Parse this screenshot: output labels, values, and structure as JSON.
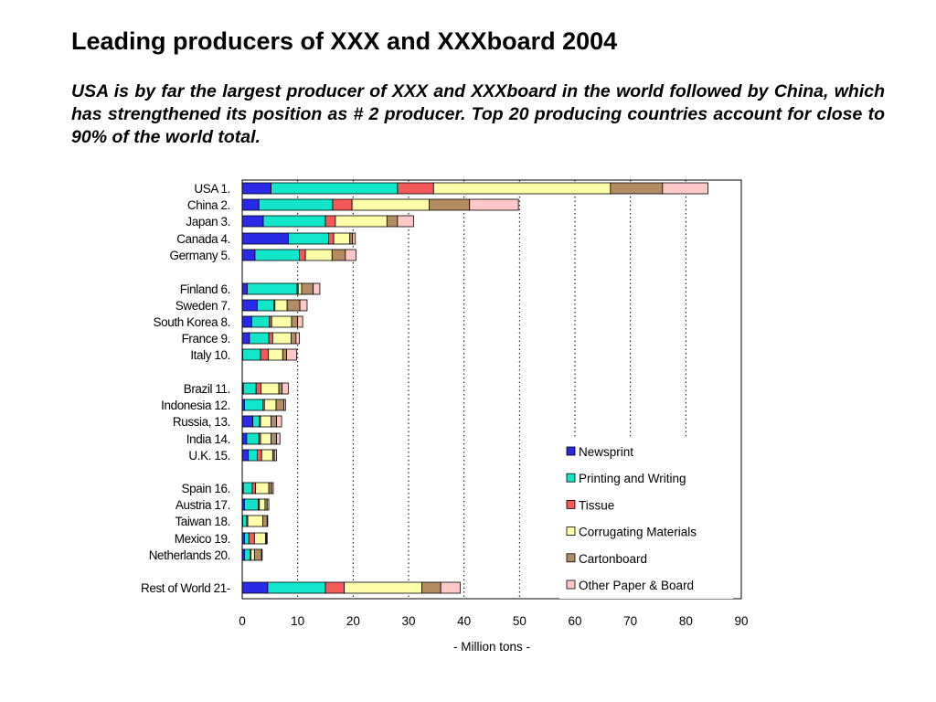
{
  "page": {
    "title": "Leading producers of XXX and XXXboard 2004",
    "subtitle": "USA is by far the largest producer of XXX and XXXboard in the world followed by China, which has strengthened its position as # 2 producer. Top 20 producing countries account for close to 90% of the world total."
  },
  "chart_data": {
    "type": "bar",
    "orientation": "horizontal",
    "stacked": true,
    "categories": [
      "USA 1.",
      "China 2.",
      "Japan 3.",
      "Canada 4.",
      "Germany 5.",
      "Finland 6.",
      "Sweden 7.",
      "South Korea 8.",
      "France 9.",
      "Italy 10.",
      "Brazil 11.",
      "Indonesia 12.",
      "Russia, 13.",
      "India 14.",
      "U.K. 15.",
      "Spain 16.",
      "Austria 17.",
      "Taiwan 18.",
      "Mexico 19.",
      "Netherlands 20.",
      "Rest of World 21-"
    ],
    "series": [
      {
        "name": "Newsprint",
        "color": "#2a2ae6",
        "values": [
          5.2,
          3.0,
          3.8,
          8.3,
          2.3,
          0.9,
          2.7,
          1.7,
          1.3,
          0.1,
          0.2,
          0.4,
          1.9,
          0.8,
          1.1,
          0.2,
          0.4,
          0.1,
          0.4,
          0.4,
          4.6
        ]
      },
      {
        "name": "Printing and Writing",
        "color": "#12e6c8",
        "values": [
          22.8,
          13.3,
          11.2,
          7.3,
          8.0,
          9.0,
          3.0,
          3.2,
          3.5,
          3.2,
          2.3,
          3.3,
          1.2,
          2.2,
          1.6,
          1.6,
          2.5,
          0.7,
          0.8,
          1.0,
          10.4
        ]
      },
      {
        "name": "Tissue",
        "color": "#f25a5a",
        "values": [
          6.5,
          3.5,
          1.8,
          0.9,
          1.1,
          0.2,
          0.2,
          0.4,
          0.7,
          1.4,
          0.9,
          0.3,
          0.2,
          0.3,
          0.8,
          0.6,
          0.2,
          0.2,
          1.0,
          0.2,
          3.4
        ]
      },
      {
        "name": "Corrugating Materials",
        "color": "#ffffaa",
        "values": [
          31.9,
          13.9,
          9.3,
          2.9,
          4.8,
          0.6,
          2.2,
          3.6,
          3.3,
          2.6,
          3.2,
          2.1,
          1.9,
          1.9,
          2.0,
          2.4,
          1.0,
          2.7,
          2.0,
          0.6,
          14.0
        ]
      },
      {
        "name": "Cartonboard",
        "color": "#b48c64",
        "values": [
          9.4,
          7.3,
          1.9,
          0.5,
          2.4,
          2.1,
          2.3,
          1.1,
          0.9,
          0.7,
          0.6,
          1.4,
          1.0,
          1.0,
          0.3,
          0.5,
          0.4,
          0.8,
          0.2,
          1.3,
          3.4
        ]
      },
      {
        "name": "Other Paper & Board",
        "color": "#ffc8c8",
        "values": [
          8.2,
          8.8,
          2.9,
          0.5,
          1.9,
          1.2,
          1.3,
          0.9,
          0.6,
          1.8,
          1.1,
          0.3,
          0.9,
          0.6,
          0.4,
          0.3,
          0.3,
          0.1,
          0.1,
          0.1,
          3.5
        ]
      }
    ],
    "xlabel": "- Million tons -",
    "xlim": [
      0,
      90
    ],
    "xticks": [
      0,
      10,
      20,
      30,
      40,
      50,
      60,
      70,
      80,
      90
    ],
    "grid": "vertical dotted",
    "legend_position": "bottom-right inside"
  }
}
